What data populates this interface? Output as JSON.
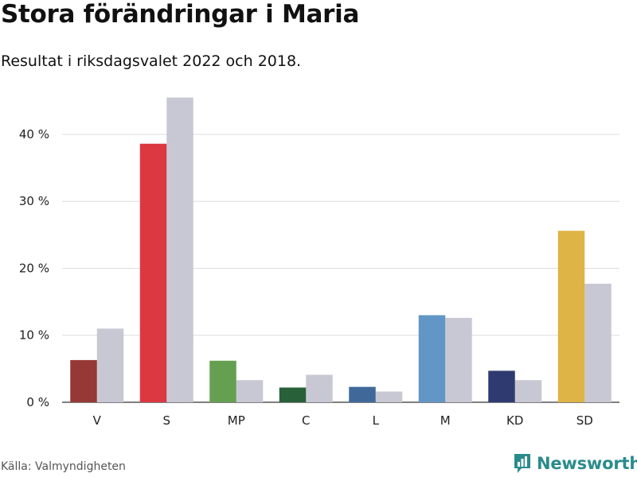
{
  "title": "Stora förändringar i Maria",
  "subtitle": "Resultat i riksdagsvalet 2022 och 2018.",
  "source": "Källa: Valmyndigheten",
  "logo": {
    "text": "Newsworthy",
    "icon": "bar-chart-icon",
    "color": "#2a8b8c"
  },
  "chart_data": {
    "type": "bar",
    "categories": [
      "V",
      "S",
      "MP",
      "C",
      "L",
      "M",
      "KD",
      "SD"
    ],
    "series": [
      {
        "values": [
          6.3,
          38.6,
          6.2,
          2.2,
          2.3,
          13.0,
          4.7,
          25.6
        ],
        "colors": [
          "#963835",
          "#dc3842",
          "#64a050",
          "#28603a",
          "#40699a",
          "#6296c6",
          "#2f3a70",
          "#ddb445"
        ]
      },
      {
        "values": [
          11.0,
          45.5,
          3.3,
          4.1,
          1.6,
          12.6,
          3.3,
          17.7
        ],
        "color": "#c8c8d4"
      }
    ],
    "yticks": [
      "0 %",
      "10 %",
      "20 %",
      "30 %",
      "40 %"
    ],
    "ytick_values": [
      0,
      10,
      20,
      30,
      40
    ],
    "ylim": [
      0,
      47
    ],
    "grid": true
  }
}
